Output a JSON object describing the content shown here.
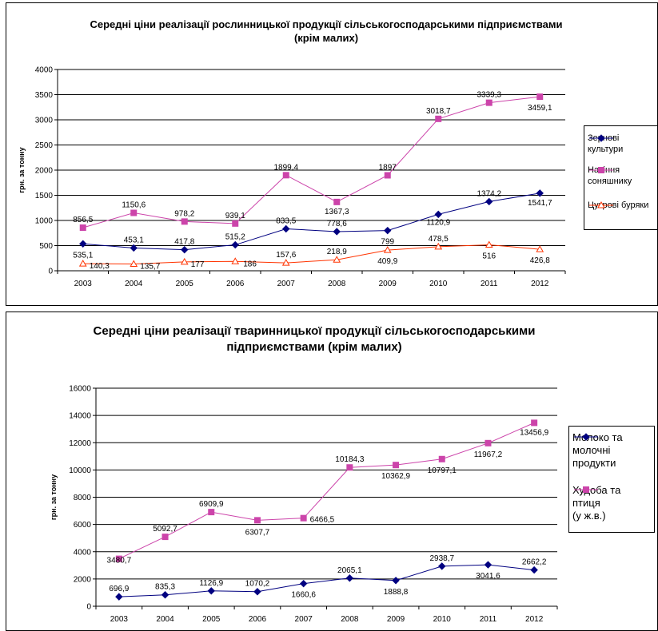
{
  "chart_data": [
    {
      "type": "line",
      "title_line1": "Середні ціни реалізації рослинницької продукції сільськогосподарськими підприємствами",
      "title_line2": "(крім малих)",
      "ylabel": "грн. за тонну",
      "xlabel": "",
      "categories": [
        "2003",
        "2004",
        "2005",
        "2006",
        "2007",
        "2008",
        "2009",
        "2010",
        "2011",
        "2012"
      ],
      "ylim": [
        0,
        4000
      ],
      "yticks": [
        "0",
        "500",
        "1000",
        "1500",
        "2000",
        "2500",
        "3000",
        "3500",
        "4000"
      ],
      "grid": true,
      "legend_position": "right",
      "series": [
        {
          "name": "Зернові культури",
          "legend_lines": [
            "Зернові",
            "культури"
          ],
          "color": "#000080",
          "marker": "diamond",
          "values": [
            535.1,
            453.1,
            417.8,
            515.2,
            833.5,
            778.6,
            799,
            1120.9,
            1374.2,
            1541.7
          ],
          "labels": [
            "535,1",
            "453,1",
            "417,8",
            "515,2",
            "833,5",
            "778,6",
            "799",
            "1120,9",
            "1374,2",
            "1541,7"
          ]
        },
        {
          "name": "Насіння соняшнику",
          "legend_lines": [
            "Насіння",
            "соняшнику"
          ],
          "color": "#cc44aa",
          "marker": "square",
          "values": [
            856.5,
            1150.6,
            978.2,
            939.1,
            1899.4,
            1367.3,
            1897,
            3018.7,
            3339.3,
            3459.1
          ],
          "labels": [
            "856,5",
            "1150,6",
            "978,2",
            "939,1",
            "1899,4",
            "1367,3",
            "1897",
            "3018,7",
            "3339,3",
            "3459,1"
          ]
        },
        {
          "name": "Цукрові буряки",
          "legend_lines": [
            "Цукрові буряки"
          ],
          "color": "#ff3300",
          "marker": "triangle",
          "values": [
            140.3,
            135.7,
            177,
            186,
            157.6,
            218.9,
            409.9,
            478.5,
            516,
            426.8
          ],
          "labels": [
            "140,3",
            "135,7",
            "177",
            "186",
            "157,6",
            "218,9",
            "409,9",
            "478,5",
            "516",
            "426,8"
          ]
        }
      ]
    },
    {
      "type": "line",
      "title_line1": "Середні ціни реалізації тваринницької продукції сільськогосподарськими",
      "title_line2": "підприємствами (крім малих)",
      "ylabel": "грн. за тонну",
      "xlabel": "",
      "categories": [
        "2003",
        "2004",
        "2005",
        "2006",
        "2007",
        "2008",
        "2009",
        "2010",
        "2011",
        "2012"
      ],
      "ylim": [
        0,
        16000
      ],
      "yticks": [
        "0",
        "2000",
        "4000",
        "6000",
        "8000",
        "10000",
        "12000",
        "14000",
        "16000"
      ],
      "grid": true,
      "legend_position": "right",
      "series": [
        {
          "name": "Молоко та молочні продукти",
          "legend_lines": [
            "Молоко та",
            "молочні",
            "продукти"
          ],
          "color": "#000080",
          "marker": "diamond",
          "values": [
            696.9,
            835.3,
            1126.9,
            1070.2,
            1660.6,
            2065.1,
            1888.8,
            2938.7,
            3041.6,
            2662.2
          ],
          "labels": [
            "696,9",
            "835,3",
            "1126,9",
            "1070,2",
            "1660,6",
            "2065,1",
            "1888,8",
            "2938,7",
            "3041,6",
            "2662,2"
          ]
        },
        {
          "name": "Худоба та птиця (у ж.в.)",
          "legend_lines": [
            "Худоба та",
            "птиця",
            "(у ж.в.)"
          ],
          "color": "#cc44aa",
          "marker": "square",
          "values": [
            3480.7,
            5092.7,
            6909.9,
            6307.7,
            6466.5,
            10184.3,
            10362.9,
            10797.1,
            11967.2,
            13456.9
          ],
          "labels": [
            "3480,7",
            "5092,7",
            "6909,9",
            "6307,7",
            "6466,5",
            "10184,3",
            "10362,9",
            "10797,1",
            "11967,2",
            "13456,9"
          ]
        }
      ]
    }
  ]
}
